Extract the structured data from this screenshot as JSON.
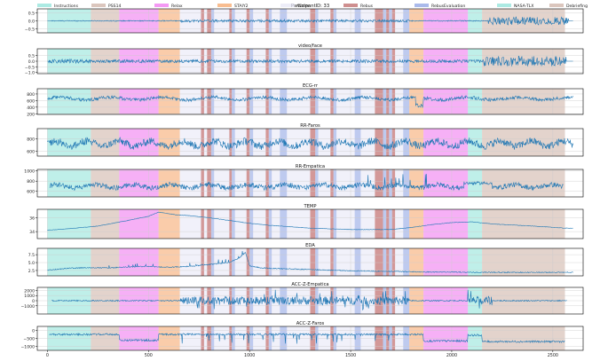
{
  "chart_data": {
    "type": "line",
    "title": "ParticipantID: 33",
    "xlim": [
      -50,
      2650
    ],
    "x_ticks": [
      0,
      500,
      1000,
      1500,
      2000,
      2500
    ],
    "legend": {
      "placement": "top",
      "entries": [
        {
          "name": "Instructions",
          "color": "#7fdfd4"
        },
        {
          "name": "PSS14",
          "color": "#c8a79a"
        },
        {
          "name": "Relax",
          "color": "#ee62ee"
        },
        {
          "name": "STAIY2",
          "color": "#f59a55"
        },
        {
          "name": "Water",
          "color": "#e6e6f5"
        },
        {
          "name": "Rebus",
          "color": "#b55353"
        },
        {
          "name": "RebusEvaluation",
          "color": "#7d95e0"
        },
        {
          "name": "NASA-TLX",
          "color": "#7fdfd4"
        },
        {
          "name": "Debriefing",
          "color": "#c8a79a"
        }
      ]
    },
    "phase_spans": [
      {
        "phase": "Instructions",
        "start": 0,
        "end": 215
      },
      {
        "phase": "PSS14",
        "start": 215,
        "end": 355
      },
      {
        "phase": "Relax",
        "start": 355,
        "end": 550
      },
      {
        "phase": "STAIY2",
        "start": 550,
        "end": 655
      },
      {
        "phase": "Water",
        "start": 655,
        "end": 760
      },
      {
        "phase": "Rebus",
        "start": 760,
        "end": 775
      },
      {
        "phase": "Water",
        "start": 775,
        "end": 790
      },
      {
        "phase": "Rebus",
        "start": 790,
        "end": 810
      },
      {
        "phase": "RebusEvaluation",
        "start": 810,
        "end": 825
      },
      {
        "phase": "Water",
        "start": 825,
        "end": 900
      },
      {
        "phase": "Rebus",
        "start": 900,
        "end": 912
      },
      {
        "phase": "RebusEvaluation",
        "start": 912,
        "end": 928
      },
      {
        "phase": "Water",
        "start": 928,
        "end": 985
      },
      {
        "phase": "Rebus",
        "start": 985,
        "end": 1000
      },
      {
        "phase": "RebusEvaluation",
        "start": 1000,
        "end": 1018
      },
      {
        "phase": "Water",
        "start": 1018,
        "end": 1080
      },
      {
        "phase": "Rebus",
        "start": 1080,
        "end": 1095
      },
      {
        "phase": "RebusEvaluation",
        "start": 1095,
        "end": 1110
      },
      {
        "phase": "Water",
        "start": 1110,
        "end": 1150
      },
      {
        "phase": "RebusEvaluation",
        "start": 1150,
        "end": 1185
      },
      {
        "phase": "Water",
        "start": 1185,
        "end": 1300
      },
      {
        "phase": "Rebus",
        "start": 1300,
        "end": 1325
      },
      {
        "phase": "RebusEvaluation",
        "start": 1325,
        "end": 1340
      },
      {
        "phase": "Water",
        "start": 1340,
        "end": 1400
      },
      {
        "phase": "Rebus",
        "start": 1400,
        "end": 1415
      },
      {
        "phase": "RebusEvaluation",
        "start": 1415,
        "end": 1430
      },
      {
        "phase": "Water",
        "start": 1430,
        "end": 1520
      },
      {
        "phase": "RebusEvaluation",
        "start": 1520,
        "end": 1550
      },
      {
        "phase": "Water",
        "start": 1550,
        "end": 1620
      },
      {
        "phase": "Rebus",
        "start": 1620,
        "end": 1660
      },
      {
        "phase": "RebusEvaluation",
        "start": 1660,
        "end": 1676
      },
      {
        "phase": "Rebus",
        "start": 1676,
        "end": 1690
      },
      {
        "phase": "RebusEvaluation",
        "start": 1690,
        "end": 1705
      },
      {
        "phase": "Rebus",
        "start": 1705,
        "end": 1720
      },
      {
        "phase": "Water",
        "start": 1720,
        "end": 1760
      },
      {
        "phase": "RebusEvaluation",
        "start": 1760,
        "end": 1790
      },
      {
        "phase": "STAIY2",
        "start": 1790,
        "end": 1860
      },
      {
        "phase": "Relax",
        "start": 1860,
        "end": 2080
      },
      {
        "phase": "NASA-TLX",
        "start": 2080,
        "end": 2150
      },
      {
        "phase": "Debriefing",
        "start": 2150,
        "end": 2560
      }
    ],
    "panels": [
      {
        "title": "ParticipantID: 33",
        "ylim": [
          -0.75,
          0.75
        ],
        "yticks": [
          -0.5,
          0.0,
          0.5
        ],
        "tick_labels": [
          "−0.5",
          "0.0",
          "0.5"
        ],
        "signal": "audio"
      },
      {
        "title": "video/face",
        "ylim": [
          -1.1,
          1.1
        ],
        "yticks": [
          -1.0,
          -0.5,
          0.0,
          0.5
        ],
        "tick_labels": [
          "−1.0",
          "−0.5",
          "0.0",
          "0.5"
        ],
        "signal": "video"
      },
      {
        "title": "ECG-rr",
        "ylim": [
          180,
          960
        ],
        "yticks": [
          200,
          400,
          600,
          800
        ],
        "tick_labels": [
          "200",
          "400",
          "600",
          "800"
        ],
        "signal": "ecg"
      },
      {
        "title": "RR-Faros",
        "ylim": [
          520,
          960
        ],
        "yticks": [
          600,
          800
        ],
        "tick_labels": [
          "600",
          "800"
        ],
        "signal": "rrfaros"
      },
      {
        "title": "RR-Empatica",
        "ylim": [
          490,
          1030
        ],
        "yticks": [
          600,
          800,
          1000
        ],
        "tick_labels": [
          "600",
          "800",
          "1000"
        ],
        "signal": "rremp"
      },
      {
        "title": "TEMP",
        "ylim": [
          33.0,
          37.2
        ],
        "yticks": [
          34,
          36
        ],
        "tick_labels": [
          "34",
          "36"
        ],
        "signal": "temp"
      },
      {
        "title": "EDA",
        "ylim": [
          0.8,
          9.5
        ],
        "yticks": [
          2.5,
          5.0,
          7.5
        ],
        "tick_labels": [
          "2.5",
          "5.0",
          "7.5"
        ],
        "signal": "eda"
      },
      {
        "title": "ACC-Z-Empatica",
        "ylim": [
          -2600,
          2600
        ],
        "yticks": [
          -1000,
          0,
          1000,
          2000
        ],
        "tick_labels": [
          "−1000",
          "0",
          "1000",
          "2000"
        ],
        "signal": "accemp"
      },
      {
        "title": "ACC-Z-Faros",
        "ylim": [
          -1250,
          250
        ],
        "yticks": [
          -1000,
          -500,
          0
        ],
        "tick_labels": [
          "−1000",
          "−500",
          "0"
        ],
        "signal": "accfaros"
      }
    ],
    "temp_curve": [
      [
        0,
        34.2
      ],
      [
        100,
        34.4
      ],
      [
        250,
        34.8
      ],
      [
        380,
        35.5
      ],
      [
        500,
        36.2
      ],
      [
        550,
        36.8
      ],
      [
        640,
        36.4
      ],
      [
        700,
        36.3
      ],
      [
        800,
        36.0
      ],
      [
        900,
        35.6
      ],
      [
        1000,
        35.2
      ],
      [
        1100,
        34.9
      ],
      [
        1200,
        34.7
      ],
      [
        1300,
        34.5
      ],
      [
        1400,
        34.4
      ],
      [
        1500,
        34.3
      ],
      [
        1600,
        34.3
      ],
      [
        1700,
        34.3
      ],
      [
        1800,
        34.6
      ],
      [
        1900,
        35.0
      ],
      [
        2000,
        35.3
      ],
      [
        2100,
        35.4
      ],
      [
        2200,
        35.1
      ],
      [
        2400,
        34.8
      ],
      [
        2560,
        34.5
      ]
    ],
    "eda_curve": [
      [
        0,
        2.6
      ],
      [
        100,
        3.2
      ],
      [
        200,
        3.4
      ],
      [
        300,
        3.3
      ],
      [
        400,
        3.6
      ],
      [
        500,
        3.8
      ],
      [
        600,
        3.5
      ],
      [
        700,
        3.8
      ],
      [
        800,
        4.4
      ],
      [
        900,
        5.0
      ],
      [
        950,
        6.5
      ],
      [
        980,
        8.2
      ],
      [
        1000,
        4.0
      ],
      [
        1050,
        3.4
      ],
      [
        1100,
        3.2
      ],
      [
        1200,
        3.0
      ],
      [
        1300,
        2.8
      ],
      [
        1400,
        2.6
      ],
      [
        1500,
        2.4
      ],
      [
        1600,
        2.3
      ],
      [
        1700,
        2.2
      ],
      [
        1800,
        2.1
      ],
      [
        1900,
        2.0
      ],
      [
        2000,
        2.0
      ],
      [
        2100,
        1.9
      ],
      [
        2200,
        1.9
      ],
      [
        2400,
        1.9
      ],
      [
        2560,
        1.9
      ]
    ]
  }
}
